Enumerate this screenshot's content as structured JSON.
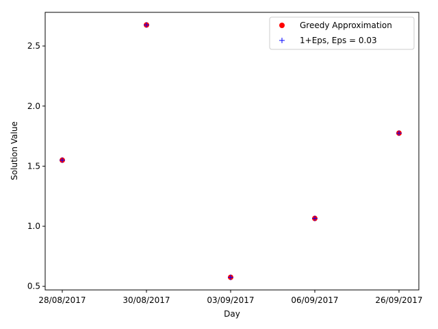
{
  "chart_data": {
    "type": "scatter",
    "categories": [
      "28/08/2017",
      "30/08/2017",
      "03/09/2017",
      "06/09/2017",
      "26/09/2017"
    ],
    "series": [
      {
        "name": "Greedy Approximation",
        "values": [
          1.55,
          2.675,
          0.575,
          1.065,
          1.775
        ],
        "marker": "circle",
        "color": "#ff0000"
      },
      {
        "name": "1+Eps, Eps = 0.03",
        "values": [
          1.55,
          2.675,
          0.575,
          1.065,
          1.775
        ],
        "marker": "plus",
        "color": "#0000ff"
      }
    ],
    "xlabel": "Day",
    "ylabel": "Solution Value",
    "ylim": [
      0.47,
      2.78
    ],
    "yticks": [
      "0.5",
      "1.0",
      "1.5",
      "2.0",
      "2.5"
    ],
    "grid": false,
    "legend_position": "top-right"
  }
}
